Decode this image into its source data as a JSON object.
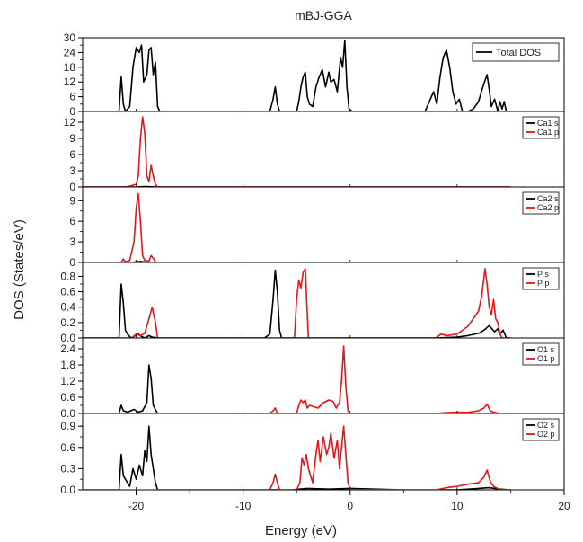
{
  "chart_data": {
    "type": "line",
    "title": "mBJ-GGA",
    "xlabel": "Energy (eV)",
    "ylabel": "DOS (States/eV)",
    "xlim": [
      -25,
      20
    ],
    "xticks": [
      -20,
      -10,
      0,
      10,
      20
    ],
    "xtick_labels": [
      "-20",
      "-10",
      "0",
      "10",
      "20"
    ],
    "grid": false,
    "colors": {
      "s": "#000000",
      "p": "#e8141a"
    },
    "panels": [
      {
        "ylim": [
          0,
          30
        ],
        "yticks": [
          0,
          6,
          12,
          18,
          24,
          30
        ],
        "ytick_labels": [
          "0",
          "6",
          "12",
          "18",
          "24",
          "30"
        ],
        "legend": [
          "Total DOS"
        ],
        "series": [
          {
            "name": "Total DOS",
            "color": "#000000",
            "x": [
              -25,
              -21.6,
              -21.4,
              -21.2,
              -21.0,
              -20.6,
              -20.3,
              -20.0,
              -19.7,
              -19.5,
              -19.3,
              -19.0,
              -18.8,
              -18.6,
              -18.4,
              -18.2,
              -18.0,
              -17.8,
              -17.5,
              -8,
              -7.5,
              -7.2,
              -7.0,
              -6.8,
              -6.6,
              -5,
              -4.8,
              -4.6,
              -4.4,
              -4.2,
              -4.0,
              -3.8,
              -3.5,
              -3.2,
              -2.9,
              -2.6,
              -2.3,
              -2.0,
              -1.8,
              -1.5,
              -1.2,
              -0.9,
              -0.7,
              -0.5,
              -0.3,
              -0.1,
              0.2,
              0.5,
              7,
              7.5,
              7.8,
              8.1,
              8.4,
              8.7,
              9.0,
              9.3,
              9.6,
              9.9,
              10.2,
              10.5,
              11.0,
              11.5,
              12.0,
              12.4,
              12.8,
              13.0,
              13.2,
              13.5,
              13.8,
              14.0,
              14.2,
              14.4,
              14.6,
              14.8
            ],
            "y": [
              0,
              0,
              14,
              3,
              0,
              2,
              18,
              26,
              24,
              27,
              12,
              15,
              25,
              26,
              15,
              20,
              2,
              0,
              0,
              0,
              0,
              5,
              10,
              3,
              0,
              0,
              4,
              10,
              14,
              16,
              6,
              3,
              2,
              10,
              14,
              17,
              10,
              16,
              12,
              13,
              8,
              22,
              18,
              29,
              10,
              1,
              0,
              0,
              0,
              5,
              8,
              3,
              14,
              22,
              25,
              18,
              8,
              3,
              5,
              0,
              0,
              1,
              4,
              10,
              15,
              9,
              2,
              5,
              0,
              4,
              1,
              4,
              0,
              0
            ]
          }
        ]
      },
      {
        "ylim": [
          0,
          14
        ],
        "yticks": [
          0,
          3,
          6,
          9,
          12
        ],
        "ytick_labels": [
          "0",
          "3",
          "6",
          "9",
          "12"
        ],
        "legend": [
          "Ca1 s",
          "Ca1 p"
        ],
        "series": [
          {
            "name": "Ca1 s",
            "color": "#000000",
            "x": [
              -25,
              -20,
              -19.5,
              -19.0,
              -18.5,
              -18.0,
              15
            ],
            "y": [
              0,
              0,
              0.05,
              0.08,
              0.04,
              0,
              0
            ]
          },
          {
            "name": "Ca1 p",
            "color": "#e8141a",
            "x": [
              -25,
              -21,
              -20.5,
              -20.0,
              -19.8,
              -19.6,
              -19.4,
              -19.2,
              -19.0,
              -18.8,
              -18.6,
              -18.4,
              -18.2,
              -18.0,
              -17.5,
              15
            ],
            "y": [
              0,
              0,
              0.2,
              0.5,
              2,
              9,
              13,
              10,
              2,
              1,
              4,
              2,
              0.5,
              0,
              0,
              0
            ]
          }
        ]
      },
      {
        "ylim": [
          0,
          11
        ],
        "yticks": [
          0,
          3,
          6,
          9
        ],
        "ytick_labels": [
          "0",
          "3",
          "6",
          "9"
        ],
        "legend": [
          "Ca2 s",
          "Ca2 p"
        ],
        "series": [
          {
            "name": "Ca2 s",
            "color": "#000000",
            "x": [
              -25,
              -20.5,
              -20.0,
              -19.5,
              -19.0,
              15
            ],
            "y": [
              0,
              0,
              0.1,
              0.15,
              0,
              0
            ]
          },
          {
            "name": "Ca2 p",
            "color": "#e8141a",
            "x": [
              -25,
              -21.4,
              -21.2,
              -21.0,
              -20.6,
              -20.2,
              -20.0,
              -19.8,
              -19.6,
              -19.4,
              -19.2,
              -18.8,
              -18.6,
              -18.4,
              -18.2,
              -18.0,
              15
            ],
            "y": [
              0,
              0,
              0.5,
              0.1,
              0.3,
              3,
              8,
              10,
              6,
              1,
              0.3,
              0.2,
              1,
              0.6,
              0.1,
              0,
              0
            ]
          }
        ]
      },
      {
        "ylim": [
          0,
          0.98
        ],
        "yticks": [
          0,
          0.2,
          0.4,
          0.6,
          0.8
        ],
        "ytick_labels": [
          "0.0",
          "0.2",
          "0.4",
          "0.6",
          "0.8"
        ],
        "legend": [
          "P s",
          "P p"
        ],
        "series": [
          {
            "name": "P s",
            "color": "#000000",
            "x": [
              -25,
              -21.6,
              -21.4,
              -21.2,
              -21.0,
              -20.8,
              -20.5,
              -20.2,
              -19.8,
              -19.5,
              -19.2,
              -18.8,
              -18.5,
              -18.0,
              -8,
              -7.5,
              -7.2,
              -7.0,
              -6.8,
              -6.6,
              -6.4,
              -4,
              8,
              10,
              11,
              12,
              12.5,
              13,
              13.5,
              13.8,
              14,
              14.3,
              14.6,
              15
            ],
            "y": [
              0,
              0,
              0.7,
              0.45,
              0.1,
              0.05,
              0,
              0.02,
              0.05,
              0.02,
              0,
              0.03,
              0.01,
              0,
              0,
              0.05,
              0.5,
              0.88,
              0.6,
              0.1,
              0,
              0,
              0,
              0.01,
              0.03,
              0.06,
              0.1,
              0.16,
              0.08,
              0.12,
              0.05,
              0.1,
              0,
              0
            ]
          },
          {
            "name": "P p",
            "color": "#e8141a",
            "x": [
              -25,
              -20.4,
              -20.0,
              -19.6,
              -19.2,
              -18.8,
              -18.5,
              -18.2,
              -18.0,
              -5.2,
              -5.0,
              -4.8,
              -4.6,
              -4.4,
              -4.2,
              -4.0,
              -3.9,
              8,
              8.5,
              9,
              10,
              11,
              11.5,
              12,
              12.3,
              12.6,
              12.8,
              13.0,
              13.2,
              13.4,
              13.6,
              13.8,
              14.0,
              14.2,
              15
            ],
            "y": [
              0,
              0,
              0.05,
              0.03,
              0.06,
              0.25,
              0.4,
              0.2,
              0,
              0,
              0.5,
              0.75,
              0.65,
              0.85,
              0.9,
              0.3,
              0,
              0,
              0.05,
              0.03,
              0.05,
              0.15,
              0.25,
              0.35,
              0.55,
              0.9,
              0.7,
              0.4,
              0.3,
              0.5,
              0.25,
              0.2,
              0.05,
              0,
              0
            ]
          }
        ]
      },
      {
        "ylim": [
          0,
          2.8
        ],
        "yticks": [
          0,
          0.6,
          1.2,
          1.8,
          2.4
        ],
        "ytick_labels": [
          "0.0",
          "0.6",
          "1.2",
          "1.8",
          "2.4"
        ],
        "legend": [
          "O1 s",
          "O1 p"
        ],
        "series": [
          {
            "name": "O1 s",
            "color": "#000000",
            "x": [
              -25,
              -21.6,
              -21.4,
              -21.2,
              -20.8,
              -20.2,
              -19.8,
              -19.4,
              -19.0,
              -18.8,
              -18.6,
              -18.4,
              -18.0,
              15
            ],
            "y": [
              0,
              0,
              0.3,
              0.1,
              0.05,
              0.15,
              0.05,
              0.1,
              0.4,
              1.8,
              1.3,
              0.3,
              0,
              0
            ]
          },
          {
            "name": "O1 p",
            "color": "#e8141a",
            "x": [
              -25,
              -7.5,
              -7.2,
              -7.0,
              -6.8,
              -5.0,
              -4.8,
              -4.6,
              -4.4,
              -4.2,
              -4.0,
              -3.8,
              -3.0,
              -2.5,
              -2.0,
              -1.6,
              -1.3,
              -1.0,
              -0.8,
              -0.6,
              -0.4,
              -0.2,
              0,
              8,
              9,
              10,
              11,
              12,
              12.5,
              12.8,
              13.1,
              13.4,
              14,
              15
            ],
            "y": [
              0,
              0,
              0.1,
              0.2,
              0,
              0,
              0.3,
              0.5,
              0.4,
              0.5,
              0.2,
              0.3,
              0.2,
              0.4,
              0.5,
              0.45,
              0.2,
              0.4,
              1.2,
              2.5,
              1.0,
              0.1,
              0,
              0,
              0.03,
              0.05,
              0.04,
              0.1,
              0.2,
              0.35,
              0.1,
              0.05,
              0,
              0
            ]
          }
        ]
      },
      {
        "ylim": [
          0,
          1.08
        ],
        "yticks": [
          0,
          0.3,
          0.6,
          0.9
        ],
        "ytick_labels": [
          "0.0",
          "0.3",
          "0.6",
          "0.9"
        ],
        "legend": [
          "O2 s",
          "O2 p"
        ],
        "series": [
          {
            "name": "O2 s",
            "color": "#000000",
            "x": [
              -25,
              -21.6,
              -21.4,
              -21.2,
              -21.0,
              -20.8,
              -20.6,
              -20.3,
              -20.0,
              -19.7,
              -19.4,
              -19.2,
              -19.0,
              -18.8,
              -18.6,
              -18.4,
              -18.2,
              -18.0,
              -5.5,
              -4,
              -2,
              0,
              5,
              10,
              12,
              13,
              14,
              15
            ],
            "y": [
              0,
              0,
              0.5,
              0.2,
              0.15,
              0.1,
              0.05,
              0.3,
              0.15,
              0.35,
              0.2,
              0.55,
              0.4,
              0.9,
              0.5,
              0.3,
              0.1,
              0,
              0,
              0.02,
              0.01,
              0.02,
              0,
              0,
              0.02,
              0.03,
              0.01,
              0
            ]
          },
          {
            "name": "O2 p",
            "color": "#e8141a",
            "x": [
              -25,
              -7.5,
              -7.2,
              -7.0,
              -6.8,
              -6.6,
              -5.0,
              -4.7,
              -4.5,
              -4.3,
              -4.1,
              -3.9,
              -3.5,
              -3.2,
              -3.0,
              -2.8,
              -2.5,
              -2.2,
              -2.0,
              -1.8,
              -1.5,
              -1.2,
              -1.0,
              -0.8,
              -0.6,
              -0.4,
              -0.2,
              0,
              8,
              9,
              10,
              11,
              12,
              12.5,
              12.8,
              13.1,
              13.4,
              14,
              15
            ],
            "y": [
              0,
              0,
              0.1,
              0.22,
              0.1,
              0,
              0,
              0.1,
              0.45,
              0.35,
              0.5,
              0.3,
              0.1,
              0.5,
              0.7,
              0.4,
              0.75,
              0.5,
              0.6,
              0.8,
              0.45,
              0.7,
              0.3,
              0.6,
              0.9,
              0.5,
              0.1,
              0,
              0,
              0.03,
              0.05,
              0.08,
              0.1,
              0.18,
              0.28,
              0.12,
              0.05,
              0,
              0
            ]
          }
        ]
      }
    ]
  }
}
